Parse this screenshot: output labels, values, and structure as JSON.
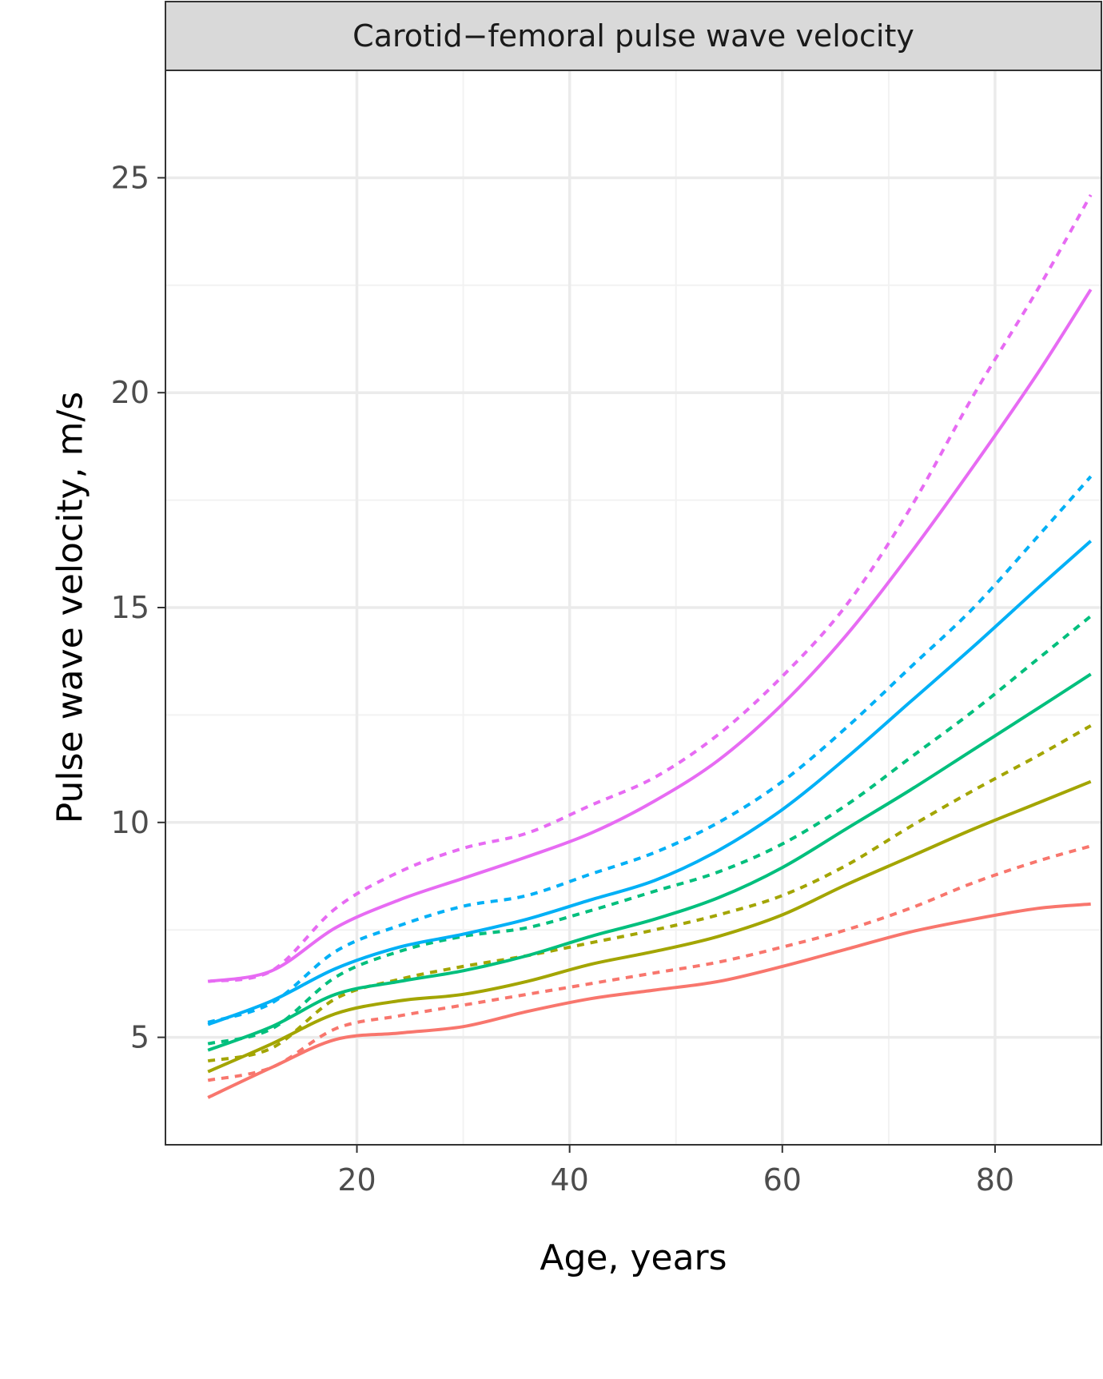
{
  "chart_data": {
    "type": "line",
    "title": "Carotid−femoral pulse wave velocity",
    "xlabel": "Age, years",
    "ylabel": "Pulse wave velocity, m/s",
    "xlim": [
      2,
      90
    ],
    "ylim": [
      2.5,
      27.5
    ],
    "xticks": [
      20,
      40,
      60,
      80
    ],
    "xtick_labels": [
      "20",
      "40",
      "60",
      "80"
    ],
    "yticks": [
      5,
      10,
      15,
      20,
      25
    ],
    "ytick_labels": [
      "5",
      "10",
      "15",
      "20",
      "25"
    ],
    "grid": true,
    "legend": "none",
    "x": [
      6,
      12,
      18,
      24,
      30,
      36,
      42,
      48,
      54,
      60,
      66,
      72,
      78,
      84,
      89
    ],
    "series": [
      {
        "color": "#F8766D",
        "dash": "solid",
        "values": [
          3.6,
          4.3,
          4.95,
          5.1,
          5.25,
          5.6,
          5.9,
          6.1,
          6.3,
          6.65,
          7.05,
          7.45,
          7.75,
          8.0,
          8.1
        ]
      },
      {
        "color": "#F8766D",
        "dash": "dotted",
        "values": [
          4.0,
          4.3,
          5.2,
          5.5,
          5.75,
          6.0,
          6.25,
          6.5,
          6.75,
          7.1,
          7.5,
          8.0,
          8.6,
          9.1,
          9.45
        ]
      },
      {
        "color": "#A3A500",
        "dash": "solid",
        "values": [
          4.2,
          4.85,
          5.55,
          5.85,
          6.0,
          6.3,
          6.7,
          7.0,
          7.35,
          7.85,
          8.55,
          9.2,
          9.85,
          10.45,
          10.95
        ]
      },
      {
        "color": "#A3A500",
        "dash": "dotted",
        "values": [
          4.45,
          4.75,
          5.9,
          6.35,
          6.65,
          6.9,
          7.2,
          7.5,
          7.85,
          8.3,
          9.0,
          9.9,
          10.75,
          11.55,
          12.25
        ]
      },
      {
        "color": "#00BF7D",
        "dash": "solid",
        "values": [
          4.7,
          5.25,
          6.0,
          6.3,
          6.55,
          6.9,
          7.35,
          7.75,
          8.25,
          8.95,
          9.85,
          10.75,
          11.7,
          12.65,
          13.45
        ]
      },
      {
        "color": "#00BF7D",
        "dash": "dotted",
        "values": [
          4.85,
          5.2,
          6.4,
          7.0,
          7.35,
          7.55,
          7.95,
          8.4,
          8.85,
          9.5,
          10.4,
          11.5,
          12.6,
          13.8,
          14.8
        ]
      },
      {
        "color": "#00B0F6",
        "dash": "solid",
        "values": [
          5.3,
          5.85,
          6.6,
          7.1,
          7.4,
          7.75,
          8.2,
          8.65,
          9.35,
          10.3,
          11.5,
          12.8,
          14.1,
          15.45,
          16.55
        ]
      },
      {
        "color": "#00B0F6",
        "dash": "dotted",
        "values": [
          5.35,
          5.8,
          7.0,
          7.6,
          8.05,
          8.3,
          8.8,
          9.3,
          10.0,
          10.95,
          12.2,
          13.6,
          15.0,
          16.65,
          18.05
        ]
      },
      {
        "color": "#E76BF3",
        "dash": "solid",
        "values": [
          6.3,
          6.55,
          7.55,
          8.2,
          8.7,
          9.2,
          9.75,
          10.5,
          11.45,
          12.75,
          14.35,
          16.25,
          18.3,
          20.45,
          22.4
        ]
      },
      {
        "color": "#E76BF3",
        "dash": "dotted",
        "values": [
          6.3,
          6.55,
          8.0,
          8.85,
          9.4,
          9.75,
          10.4,
          11.05,
          12.05,
          13.4,
          15.05,
          17.3,
          19.95,
          22.4,
          24.6
        ]
      }
    ]
  }
}
